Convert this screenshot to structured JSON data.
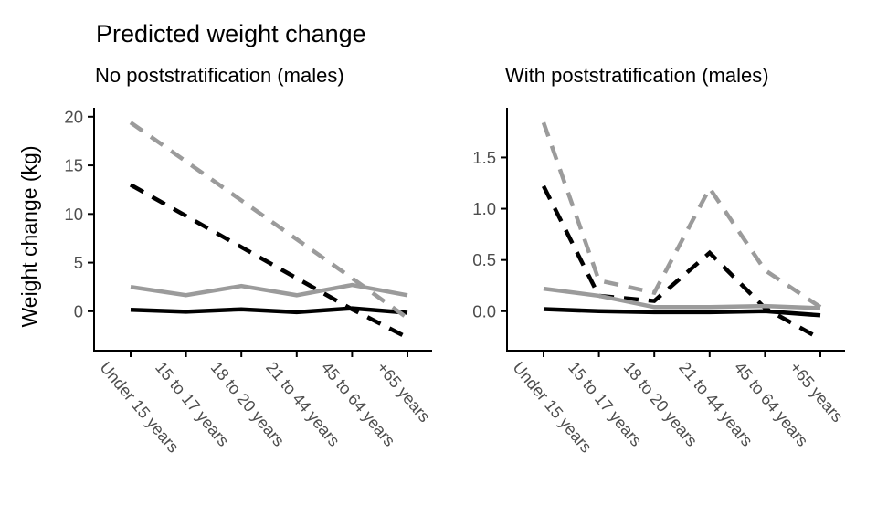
{
  "figure": {
    "title": "Predicted weight change",
    "y_axis_title": "Weight change (kg)"
  },
  "colors": {
    "black": "#000000",
    "gray": "#9b9b9b",
    "axis_line": "#000000",
    "axis_text": "#4d4d4d",
    "background": "#ffffff"
  },
  "chart_data": [
    {
      "type": "line",
      "title": "No poststratification (males)",
      "ylabel": "Weight change (kg)",
      "categories": [
        "Under 15 years",
        "15 to 17 years",
        "18 to 20 years",
        "21 to 44 years",
        "45 to 64 years",
        "+65 years"
      ],
      "yticks": [
        0,
        5,
        10,
        15,
        20
      ],
      "ytick_labels": [
        "0",
        "5",
        "10",
        "15",
        "20"
      ],
      "ylim": [
        -4.05,
        20.92
      ],
      "grid": false,
      "legend": "none",
      "series": [
        {
          "name": "dashed black",
          "color_key": "black",
          "dash": "dashed",
          "values": [
            13.0,
            9.8,
            6.6,
            3.4,
            0.2,
            -2.7
          ]
        },
        {
          "name": "solid black",
          "color_key": "black",
          "dash": "solid",
          "values": [
            0.15,
            -0.05,
            0.2,
            -0.1,
            0.3,
            -0.15
          ]
        },
        {
          "name": "solid gray",
          "color_key": "gray",
          "dash": "solid",
          "values": [
            2.5,
            1.65,
            2.6,
            1.65,
            2.7,
            1.65
          ]
        },
        {
          "name": "dashed gray",
          "color_key": "gray",
          "dash": "dashed",
          "values": [
            19.4,
            15.4,
            11.4,
            7.4,
            3.4,
            -0.7
          ]
        }
      ]
    },
    {
      "type": "line",
      "title": "With poststratification (males)",
      "ylabel": "Weight change (kg)",
      "categories": [
        "Under 15 years",
        "15 to 17 years",
        "18 to 20 years",
        "21 to 44 years",
        "45 to 64 years",
        "+65 years"
      ],
      "yticks": [
        0.0,
        0.5,
        1.0,
        1.5
      ],
      "ytick_labels": [
        "0.0",
        "0.5",
        "1.0",
        "1.5"
      ],
      "ylim": [
        -0.385,
        1.985
      ],
      "grid": false,
      "legend": "none",
      "series": [
        {
          "name": "dashed black",
          "color_key": "black",
          "dash": "dashed",
          "values": [
            1.22,
            0.15,
            0.1,
            0.57,
            0.03,
            -0.27
          ]
        },
        {
          "name": "solid black",
          "color_key": "black",
          "dash": "solid",
          "values": [
            0.02,
            0.0,
            -0.01,
            -0.01,
            0.0,
            -0.04
          ]
        },
        {
          "name": "solid gray",
          "color_key": "gray",
          "dash": "solid",
          "values": [
            0.22,
            0.15,
            0.04,
            0.04,
            0.05,
            0.03
          ]
        },
        {
          "name": "dashed gray",
          "color_key": "gray",
          "dash": "dashed",
          "values": [
            1.84,
            0.3,
            0.18,
            1.2,
            0.4,
            0.04
          ]
        }
      ]
    }
  ]
}
